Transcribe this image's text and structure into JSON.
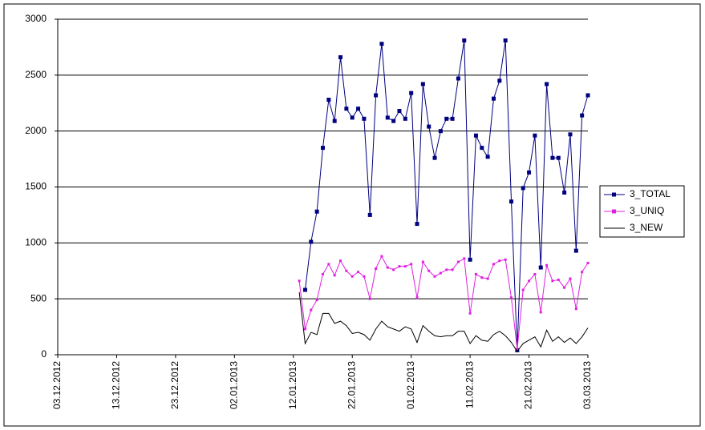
{
  "chart_data": {
    "type": "line",
    "x": [
      "13.01.2013",
      "14.01.2013",
      "15.01.2013",
      "16.01.2013",
      "17.01.2013",
      "18.01.2013",
      "19.01.2013",
      "20.01.2013",
      "21.01.2013",
      "22.01.2013",
      "23.01.2013",
      "24.01.2013",
      "25.01.2013",
      "26.01.2013",
      "27.01.2013",
      "28.01.2013",
      "29.01.2013",
      "30.01.2013",
      "31.01.2013",
      "01.02.2013",
      "02.02.2013",
      "03.02.2013",
      "04.02.2013",
      "05.02.2013",
      "06.02.2013",
      "07.02.2013",
      "08.02.2013",
      "09.02.2013",
      "10.02.2013",
      "11.02.2013",
      "12.02.2013",
      "13.02.2013",
      "14.02.2013",
      "15.02.2013",
      "16.02.2013",
      "17.02.2013",
      "18.02.2013",
      "19.02.2013",
      "20.02.2013",
      "21.02.2013",
      "22.02.2013",
      "23.02.2013",
      "24.02.2013",
      "25.02.2013",
      "26.02.2013",
      "27.02.2013",
      "28.02.2013",
      "01.03.2013",
      "02.03.2013",
      "03.03.2013"
    ],
    "series": [
      {
        "name": "3_TOTAL",
        "color": "#000080",
        "marker": true,
        "values": [
          null,
          580,
          1010,
          1280,
          1850,
          2280,
          2090,
          2660,
          2200,
          2120,
          2200,
          2110,
          1250,
          2320,
          2780,
          2120,
          2090,
          2180,
          2110,
          2340,
          1170,
          2420,
          2040,
          1760,
          2000,
          2110,
          2110,
          2470,
          2810,
          850,
          1960,
          1850,
          1770,
          2290,
          2450,
          2810,
          1370,
          40,
          1490,
          1630,
          1960,
          780,
          2420,
          1760,
          1760,
          1450,
          1970,
          930,
          2140,
          2320
        ]
      },
      {
        "name": "3_UNIQ",
        "color": "#e020e0",
        "marker": true,
        "values": [
          660,
          230,
          400,
          490,
          720,
          810,
          710,
          840,
          750,
          700,
          740,
          700,
          500,
          770,
          880,
          780,
          760,
          790,
          790,
          810,
          510,
          830,
          750,
          700,
          730,
          760,
          760,
          830,
          860,
          370,
          720,
          690,
          680,
          810,
          840,
          850,
          510,
          50,
          580,
          660,
          720,
          380,
          800,
          660,
          670,
          600,
          680,
          410,
          740,
          820
        ]
      },
      {
        "name": "3_NEW",
        "color": "#000000",
        "marker": false,
        "values": [
          560,
          100,
          200,
          180,
          370,
          370,
          280,
          300,
          260,
          190,
          200,
          180,
          130,
          230,
          300,
          250,
          230,
          210,
          250,
          230,
          110,
          260,
          210,
          170,
          160,
          170,
          170,
          210,
          210,
          100,
          170,
          130,
          120,
          180,
          210,
          170,
          110,
          30,
          100,
          130,
          160,
          70,
          220,
          120,
          160,
          110,
          150,
          100,
          160,
          240
        ]
      }
    ],
    "xlim": [
      "03.12.2012",
      "03.03.2013"
    ],
    "xticks": [
      "03.12.2012",
      "13.12.2012",
      "23.12.2012",
      "02.01.2013",
      "12.01.2013",
      "22.01.2013",
      "01.02.2013",
      "11.02.2013",
      "21.02.2013",
      "03.03.2013"
    ],
    "ylim": [
      0,
      3000
    ],
    "yticks": [
      0,
      500,
      1000,
      1500,
      2000,
      2500,
      3000
    ],
    "grid": true,
    "legend": "right"
  }
}
